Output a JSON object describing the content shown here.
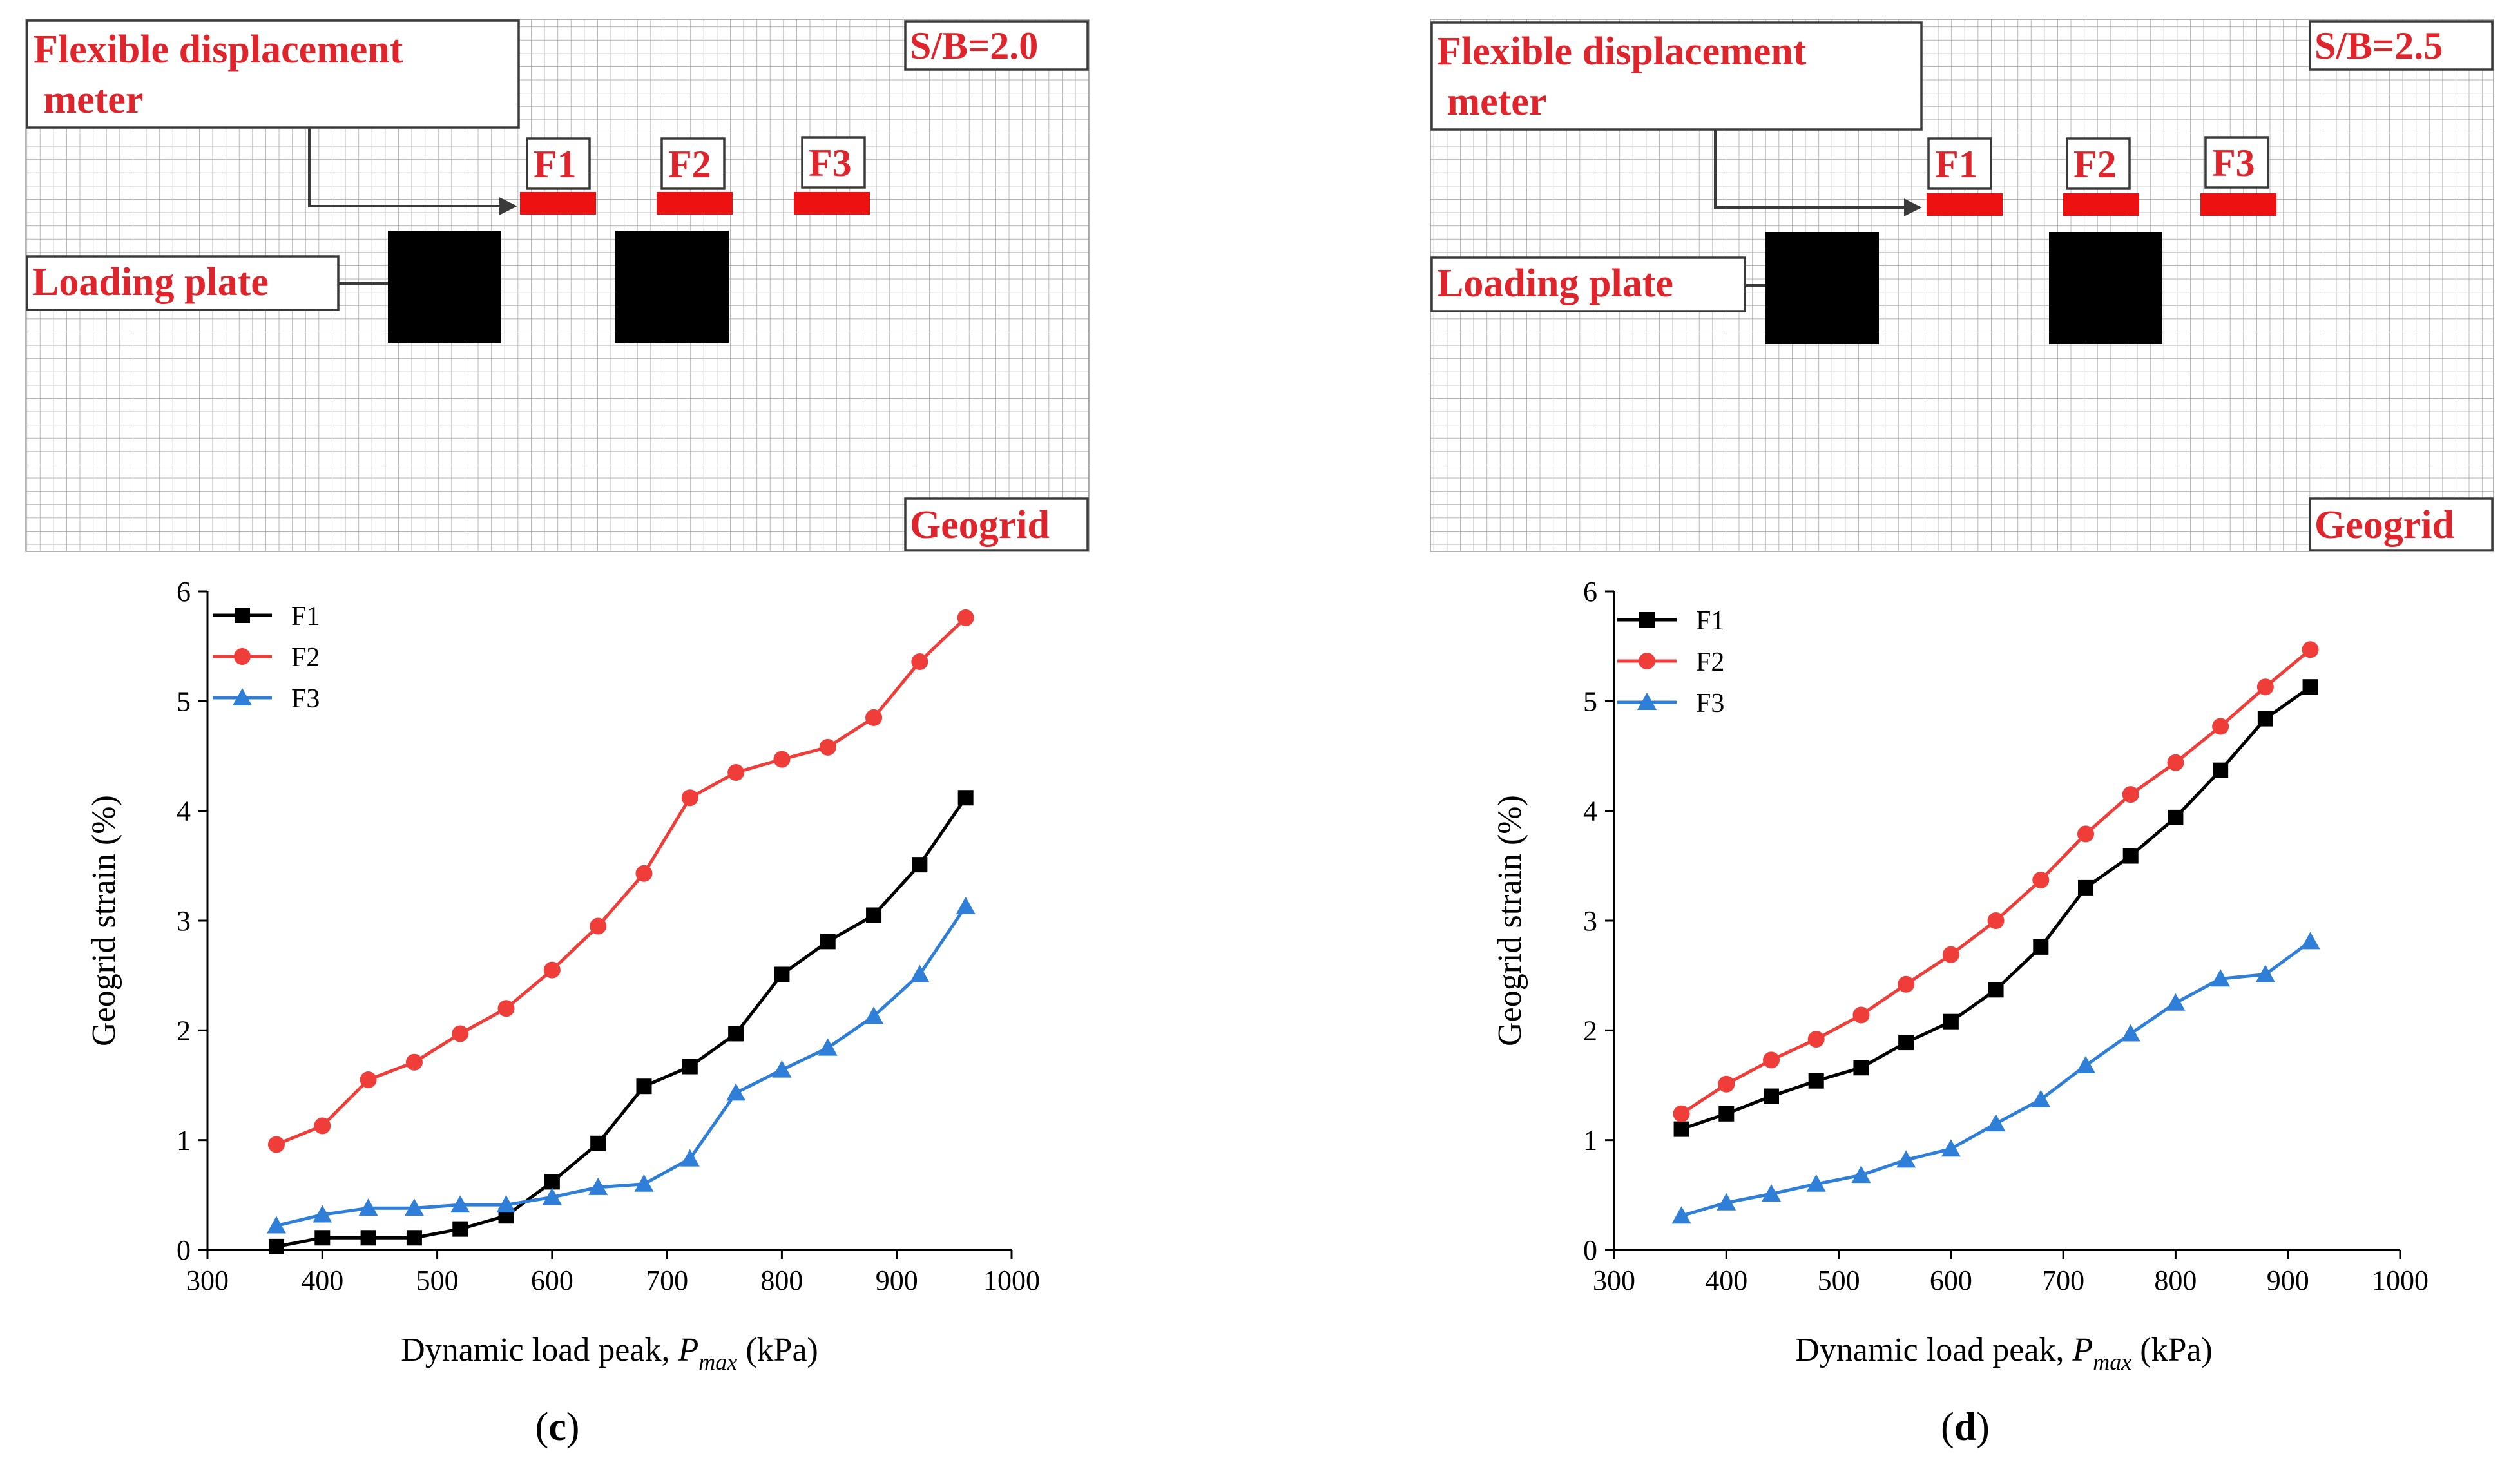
{
  "schematics": [
    {
      "sb_label": "S/B=2.0",
      "meter_label_line1": "Flexible displacement",
      "meter_label_line2": " meter",
      "loading_label": "Loading plate",
      "geogrid_label": "Geogrid",
      "sensors": [
        "F1",
        "F2",
        "F3"
      ]
    },
    {
      "sb_label": "S/B=2.5",
      "meter_label_line1": "Flexible displacement",
      "meter_label_line2": " meter",
      "loading_label": "Loading plate",
      "geogrid_label": "Geogrid",
      "sensors": [
        "F1",
        "F2",
        "F3"
      ]
    }
  ],
  "colors": {
    "F1": "#000000",
    "F2": "#ef3e3a",
    "F3": "#2f7fd8",
    "label_red": "#e0242b"
  },
  "chart_data": [
    {
      "type": "line",
      "panel_label": "c",
      "title": "",
      "xlabel_main": "Dynamic load peak, ",
      "xlabel_var": "P",
      "xlabel_sub": "max",
      "xlabel_unit": " (kPa)",
      "ylabel": "Geogrid strain (%)",
      "xlim": [
        300,
        1000
      ],
      "ylim": [
        0,
        6
      ],
      "xticks": [
        300,
        400,
        500,
        600,
        700,
        800,
        900,
        1000
      ],
      "yticks": [
        0,
        1,
        2,
        3,
        4,
        5,
        6
      ],
      "legend_position": "top-left",
      "x": [
        360,
        400,
        440,
        480,
        520,
        560,
        600,
        640,
        680,
        720,
        760,
        800,
        840,
        880,
        920,
        960
      ],
      "series": [
        {
          "name": "F1",
          "marker": "square",
          "values": [
            0.03,
            0.11,
            0.11,
            0.11,
            0.19,
            0.31,
            0.62,
            0.97,
            1.49,
            1.67,
            1.97,
            2.51,
            2.81,
            3.05,
            3.51,
            4.12
          ]
        },
        {
          "name": "F2",
          "marker": "circle",
          "values": [
            0.96,
            1.13,
            1.55,
            1.71,
            1.97,
            2.2,
            2.55,
            2.95,
            3.43,
            4.12,
            4.35,
            4.47,
            4.58,
            4.85,
            5.36,
            5.76
          ]
        },
        {
          "name": "F3",
          "marker": "triangle",
          "values": [
            0.22,
            0.32,
            0.38,
            0.38,
            0.41,
            0.41,
            0.48,
            0.57,
            0.6,
            0.83,
            1.43,
            1.64,
            1.84,
            2.13,
            2.51,
            3.13
          ]
        }
      ]
    },
    {
      "type": "line",
      "panel_label": "d",
      "title": "",
      "xlabel_main": "Dynamic load peak, ",
      "xlabel_var": "P",
      "xlabel_sub": "max",
      "xlabel_unit": " (kPa)",
      "ylabel": "Geogrid strain (%)",
      "xlim": [
        300,
        1000
      ],
      "ylim": [
        0,
        6
      ],
      "xticks": [
        300,
        400,
        500,
        600,
        700,
        800,
        900,
        1000
      ],
      "yticks": [
        0,
        1,
        2,
        3,
        4,
        5,
        6
      ],
      "legend_position": "top-left",
      "x": [
        360,
        400,
        440,
        480,
        520,
        560,
        600,
        640,
        680,
        720,
        760,
        800,
        840,
        880,
        920
      ],
      "series": [
        {
          "name": "F1",
          "marker": "square",
          "values": [
            1.1,
            1.24,
            1.4,
            1.54,
            1.66,
            1.89,
            2.08,
            2.37,
            2.76,
            3.3,
            3.59,
            3.94,
            4.37,
            4.84,
            5.13
          ]
        },
        {
          "name": "F2",
          "marker": "circle",
          "values": [
            1.24,
            1.51,
            1.73,
            1.92,
            2.14,
            2.42,
            2.69,
            3.0,
            3.37,
            3.79,
            4.15,
            4.44,
            4.77,
            5.13,
            5.47
          ]
        },
        {
          "name": "F3",
          "marker": "triangle",
          "values": [
            0.31,
            0.43,
            0.51,
            0.6,
            0.68,
            0.82,
            0.92,
            1.15,
            1.37,
            1.68,
            1.97,
            2.25,
            2.47,
            2.51,
            2.81
          ]
        }
      ]
    }
  ]
}
